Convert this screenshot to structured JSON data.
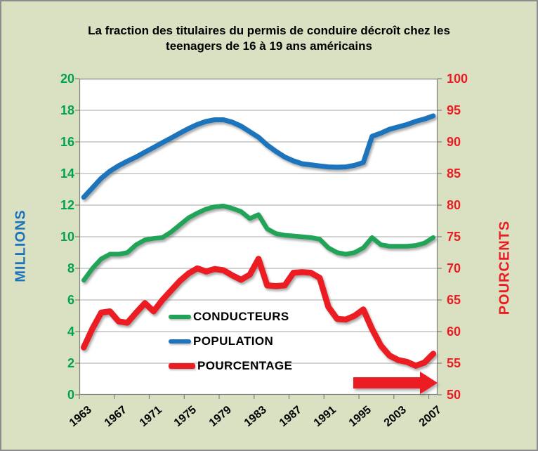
{
  "title": {
    "line1": "La fraction des titulaires du permis de conduire décroît chez les",
    "line2": "teenagers de 16 à 19 ans américains"
  },
  "left_axis": {
    "title": "MILLIONS",
    "title_color": "#1c74bc",
    "tick_color": "#00a24e",
    "ticks": [
      20,
      18,
      16,
      14,
      12,
      10,
      8,
      6,
      4,
      2,
      0
    ]
  },
  "right_axis": {
    "title": "POURCENTS",
    "title_color": "#ec1c23",
    "tick_color": "#ec1c23",
    "ticks": [
      100,
      95,
      90,
      85,
      80,
      75,
      70,
      65,
      60,
      55,
      50
    ]
  },
  "x_axis": {
    "labels": [
      "1963",
      "1967",
      "1971",
      "1975",
      "1979",
      "1983",
      "1987",
      "1991",
      "1995",
      "2003",
      "2007"
    ],
    "label_color": "#000000"
  },
  "legend": {
    "items": [
      {
        "label": "CONDUCTEURS",
        "color": "#21a457"
      },
      {
        "label": "POPULATION",
        "color": "#1c74bc"
      },
      {
        "label": "POURCENTAGE",
        "color": "#ec1c23"
      }
    ]
  },
  "annotation_arrow": {
    "direction": "right",
    "color": "#ec1c23"
  },
  "colors": {
    "background": "#d9e1c2",
    "plot_background": "#ffffff",
    "gridline": "#a6a6a6",
    "plot_border": "#808080",
    "tick_mark": "#808080"
  },
  "chart_data": {
    "type": "line",
    "title": "La fraction des titulaires du permis de conduire décroît chez les teenagers de 16 à 19 ans américains",
    "x": [
      1963,
      1964,
      1965,
      1966,
      1967,
      1968,
      1969,
      1970,
      1971,
      1972,
      1973,
      1974,
      1975,
      1976,
      1977,
      1978,
      1979,
      1980,
      1981,
      1982,
      1983,
      1984,
      1985,
      1986,
      1987,
      1988,
      1989,
      1990,
      1991,
      1992,
      1993,
      1994,
      1995,
      1997,
      1999,
      2001,
      2003,
      2004,
      2005,
      2006,
      2007
    ],
    "left_ylabel": "MILLIONS",
    "right_ylabel": "POURCENTS",
    "left_ylim": [
      0,
      20
    ],
    "right_ylim": [
      50,
      100
    ],
    "grid": true,
    "legend_position": "inside-lower-left",
    "series": [
      {
        "name": "CONDUCTEURS",
        "axis": "left",
        "unit": "millions",
        "color": "#21a457",
        "width": 6.5,
        "values": [
          7.25,
          8.0,
          8.6,
          8.9,
          8.9,
          9.0,
          9.5,
          9.8,
          9.9,
          9.95,
          10.3,
          10.75,
          11.2,
          11.5,
          11.75,
          11.9,
          11.95,
          11.8,
          11.6,
          11.15,
          11.4,
          10.5,
          10.2,
          10.1,
          10.05,
          10.0,
          9.95,
          9.85,
          9.3,
          9.0,
          8.9,
          9.0,
          9.3,
          9.95,
          9.5,
          9.4,
          9.4,
          9.4,
          9.45,
          9.6,
          9.95
        ]
      },
      {
        "name": "POPULATION",
        "axis": "left",
        "unit": "millions",
        "color": "#1c74bc",
        "width": 7,
        "values": [
          12.5,
          13.1,
          13.7,
          14.15,
          14.5,
          14.78,
          15.05,
          15.35,
          15.65,
          15.95,
          16.25,
          16.55,
          16.85,
          17.1,
          17.3,
          17.4,
          17.4,
          17.25,
          17.0,
          16.65,
          16.3,
          15.8,
          15.4,
          15.05,
          14.8,
          14.62,
          14.55,
          14.48,
          14.42,
          14.4,
          14.42,
          14.52,
          14.7,
          16.35,
          16.55,
          16.8,
          16.95,
          17.1,
          17.3,
          17.45,
          17.65
        ]
      },
      {
        "name": "POURCENTAGE",
        "axis": "right",
        "unit": "percent",
        "color": "#ec1c23",
        "width": 8.5,
        "values": [
          57.5,
          60.5,
          63.0,
          63.2,
          61.6,
          61.4,
          63.0,
          64.5,
          63.2,
          65.0,
          66.5,
          68.0,
          69.2,
          70.0,
          69.5,
          69.9,
          69.7,
          68.9,
          68.2,
          69.0,
          71.5,
          67.3,
          67.2,
          67.3,
          69.3,
          69.4,
          69.3,
          68.5,
          63.9,
          62.0,
          61.9,
          62.5,
          63.5,
          60.4,
          57.8,
          56.2,
          55.5,
          55.2,
          54.6,
          55.1,
          56.5
        ]
      }
    ]
  }
}
